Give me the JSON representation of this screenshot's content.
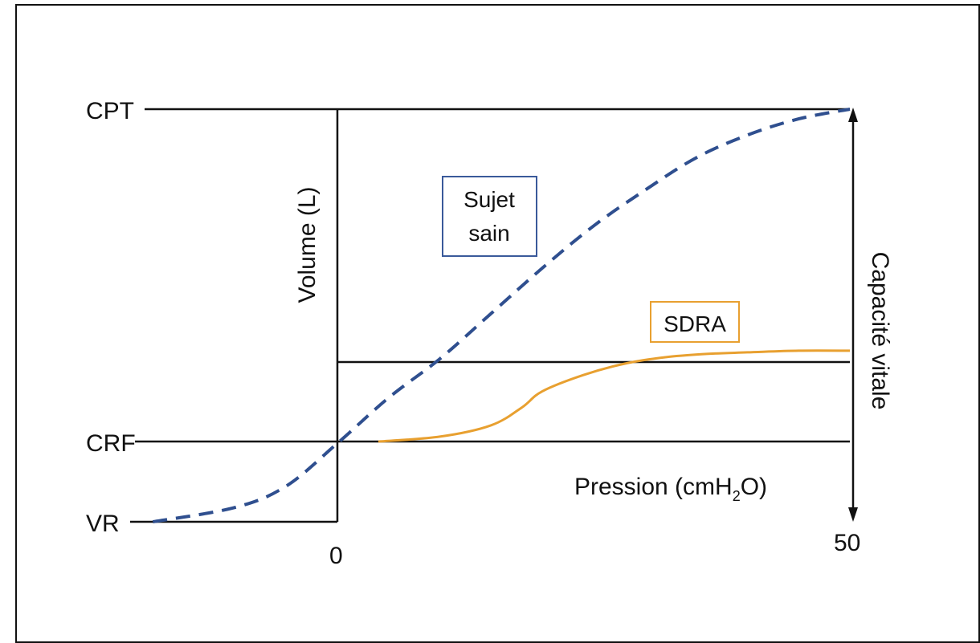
{
  "chart_data": {
    "type": "line",
    "xlabel": "Pression (cmH",
    "xlabel_sub": "2",
    "xlabel_end": "O)",
    "ylabel": "Volume (L)",
    "right_label": "Capacité vitale",
    "x_ticks": [
      "0",
      "50"
    ],
    "y_levels": [
      "CPT",
      "CRF",
      "VR"
    ],
    "xlim": [
      -20,
      50
    ],
    "series": [
      {
        "name": "Sujet sain",
        "color": "#2f4f8f",
        "style": "dashed",
        "x": [
          -18,
          -10,
          -5,
          0,
          5,
          10,
          15,
          20,
          25,
          30,
          35,
          40,
          45,
          50
        ],
        "y": [
          0.0,
          0.08,
          0.2,
          0.44,
          0.72,
          0.96,
          1.24,
          1.52,
          1.78,
          2.0,
          2.2,
          2.34,
          2.44,
          2.5
        ]
      },
      {
        "name": "SDRA",
        "color": "#e8a030",
        "style": "solid",
        "x": [
          4,
          10,
          15,
          18,
          20,
          24,
          28,
          32,
          36,
          40,
          45,
          50
        ],
        "y": [
          0.45,
          0.48,
          0.55,
          0.66,
          0.76,
          0.86,
          0.93,
          0.97,
          0.99,
          1.0,
          1.01,
          1.01
        ]
      }
    ],
    "reference_lines": {
      "CPT": 2.5,
      "CRF": 0.45,
      "VR": 0.0,
      "SDRA_plateau": 0.95
    },
    "colors": {
      "axis": "#111111",
      "sujet_sain_box": "#3a5a9a",
      "sdra_box": "#e8a030"
    }
  }
}
